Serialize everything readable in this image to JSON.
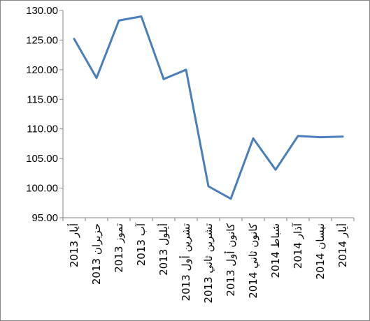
{
  "chart_data": {
    "type": "line",
    "title": "",
    "xlabel": "",
    "ylabel": "",
    "ylim": [
      95,
      130
    ],
    "y_ticks": [
      "130.00",
      "125.00",
      "120.00",
      "115.00",
      "110.00",
      "105.00",
      "100.00",
      "95.00"
    ],
    "y_tick_values": [
      130,
      125,
      120,
      115,
      110,
      105,
      100,
      95
    ],
    "categories": [
      "أيار 2013",
      "حزيران 2013",
      "تموز 2013",
      "آب 2013",
      "أيلول 2013",
      "تشرين أول 2013",
      "تشرين ثاني 2013",
      "كانون أول 2013",
      "كانون ثاني 2014",
      "شباط 2014",
      "آذار 2014",
      "نيسان 2014",
      "أيار 2014"
    ],
    "series": [
      {
        "values": [
          125.2,
          118.6,
          128.3,
          129.0,
          118.4,
          120.0,
          100.3,
          98.2,
          108.4,
          103.1,
          108.8,
          108.6,
          108.7
        ],
        "color": "#4a7ebb"
      }
    ],
    "grid": false,
    "legend": "none"
  }
}
